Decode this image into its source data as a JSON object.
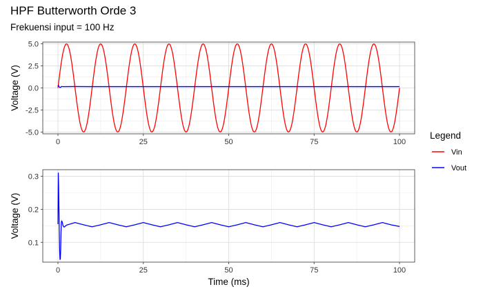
{
  "title": "HPF Butterworth Orde 3",
  "subtitle": "Frekuensi input = 100 Hz",
  "legend": {
    "title": "Legend",
    "placement": "right",
    "entries": [
      {
        "label": "Vin",
        "color": "#ff0000"
      },
      {
        "label": "Vout",
        "color": "#0000ff"
      }
    ]
  },
  "chart_data": [
    {
      "type": "line",
      "ylabel": "Voltage (V)",
      "xlabel": "",
      "xlim": [
        0,
        100
      ],
      "ylim": [
        -5.2,
        5.2
      ],
      "x_ticks": [
        0,
        25,
        50,
        75,
        100
      ],
      "y_ticks": [
        5.0,
        2.5,
        0.0,
        -2.5,
        -5.0
      ],
      "y_tick_labels": [
        "5.0",
        "2.5",
        "0.0",
        "-2.5",
        "-5.0"
      ],
      "grid": true,
      "series": [
        {
          "name": "Vin",
          "color": "#ff0000",
          "points": [
            [
              0,
              0
            ],
            [
              1.25,
              3.54
            ],
            [
              2.5,
              5
            ],
            [
              3.75,
              3.54
            ],
            [
              5,
              0
            ],
            [
              6.25,
              -3.54
            ],
            [
              7.5,
              -5
            ],
            [
              8.75,
              -3.54
            ],
            [
              10,
              0
            ],
            [
              11.25,
              3.54
            ],
            [
              12.5,
              5
            ],
            [
              13.75,
              3.54
            ],
            [
              15,
              0
            ],
            [
              16.25,
              -3.54
            ],
            [
              17.5,
              -5
            ],
            [
              18.75,
              -3.54
            ],
            [
              20,
              0
            ],
            [
              21.25,
              3.54
            ],
            [
              22.5,
              5
            ],
            [
              23.75,
              3.54
            ],
            [
              25,
              0
            ],
            [
              26.25,
              -3.54
            ],
            [
              27.5,
              -5
            ],
            [
              28.75,
              -3.54
            ],
            [
              30,
              0
            ],
            [
              31.25,
              3.54
            ],
            [
              32.5,
              5
            ],
            [
              33.75,
              3.54
            ],
            [
              35,
              0
            ],
            [
              36.25,
              -3.54
            ],
            [
              37.5,
              -5
            ],
            [
              38.75,
              -3.54
            ],
            [
              40,
              0
            ],
            [
              41.25,
              3.54
            ],
            [
              42.5,
              5
            ],
            [
              43.75,
              3.54
            ],
            [
              45,
              0
            ],
            [
              46.25,
              -3.54
            ],
            [
              47.5,
              -5
            ],
            [
              48.75,
              -3.54
            ],
            [
              50,
              0
            ],
            [
              51.25,
              3.54
            ],
            [
              52.5,
              5
            ],
            [
              53.75,
              3.54
            ],
            [
              55,
              0
            ],
            [
              56.25,
              -3.54
            ],
            [
              57.5,
              -5
            ],
            [
              58.75,
              -3.54
            ],
            [
              60,
              0
            ],
            [
              61.25,
              3.54
            ],
            [
              62.5,
              5
            ],
            [
              63.75,
              3.54
            ],
            [
              65,
              0
            ],
            [
              66.25,
              -3.54
            ],
            [
              67.5,
              -5
            ],
            [
              68.75,
              -3.54
            ],
            [
              70,
              0
            ],
            [
              71.25,
              3.54
            ],
            [
              72.5,
              5
            ],
            [
              73.75,
              3.54
            ],
            [
              75,
              0
            ],
            [
              76.25,
              -3.54
            ],
            [
              77.5,
              -5
            ],
            [
              78.75,
              -3.54
            ],
            [
              80,
              0
            ],
            [
              81.25,
              3.54
            ],
            [
              82.5,
              5
            ],
            [
              83.75,
              3.54
            ],
            [
              85,
              0
            ],
            [
              86.25,
              -3.54
            ],
            [
              87.5,
              -5
            ],
            [
              88.75,
              -3.54
            ],
            [
              90,
              0
            ],
            [
              91.25,
              3.54
            ],
            [
              92.5,
              5
            ],
            [
              93.75,
              3.54
            ],
            [
              95,
              0
            ],
            [
              96.25,
              -3.54
            ],
            [
              97.5,
              -5
            ],
            [
              98.75,
              -3.54
            ],
            [
              100,
              0
            ]
          ]
        },
        {
          "name": "Vout",
          "color": "#0000ff",
          "points": [
            [
              0,
              0.15
            ],
            [
              0.1,
              0.3
            ],
            [
              0.2,
              0.25
            ],
            [
              0.4,
              0.1
            ],
            [
              0.6,
              0.05
            ],
            [
              0.8,
              0.08
            ],
            [
              1,
              0.16
            ],
            [
              1.2,
              0.165
            ],
            [
              1.5,
              0.148
            ],
            [
              2,
              0.15
            ],
            [
              5,
              0.16
            ],
            [
              10,
              0.15
            ],
            [
              100,
              0.15
            ]
          ]
        }
      ]
    },
    {
      "type": "line",
      "ylabel": "Voltage (V)",
      "xlabel": "Time (ms)",
      "xlim": [
        0,
        100
      ],
      "ylim": [
        0.04,
        0.32
      ],
      "x_ticks": [
        0,
        25,
        50,
        75,
        100
      ],
      "y_ticks": [
        0.3,
        0.2,
        0.1
      ],
      "y_tick_labels": [
        "0.3",
        "0.2",
        "0.1"
      ],
      "grid": true,
      "series": [
        {
          "name": "Vout",
          "color": "#0000ff",
          "points": [
            [
              0,
              0.155
            ],
            [
              0.1,
              0.31
            ],
            [
              0.2,
              0.27
            ],
            [
              0.3,
              0.2
            ],
            [
              0.4,
              0.12
            ],
            [
              0.5,
              0.07
            ],
            [
              0.6,
              0.048
            ],
            [
              0.7,
              0.05
            ],
            [
              0.8,
              0.08
            ],
            [
              0.9,
              0.13
            ],
            [
              1,
              0.16
            ],
            [
              1.1,
              0.165
            ],
            [
              1.3,
              0.16
            ],
            [
              1.5,
              0.15
            ],
            [
              1.8,
              0.146
            ],
            [
              2.5,
              0.152
            ],
            [
              5,
              0.16
            ],
            [
              7.5,
              0.153
            ],
            [
              10,
              0.147
            ],
            [
              12.5,
              0.153
            ],
            [
              15,
              0.16
            ],
            [
              17.5,
              0.153
            ],
            [
              20,
              0.147
            ],
            [
              22.5,
              0.153
            ],
            [
              25,
              0.16
            ],
            [
              27.5,
              0.153
            ],
            [
              30,
              0.147
            ],
            [
              32.5,
              0.153
            ],
            [
              35,
              0.16
            ],
            [
              37.5,
              0.153
            ],
            [
              40,
              0.147
            ],
            [
              42.5,
              0.153
            ],
            [
              45,
              0.16
            ],
            [
              47.5,
              0.153
            ],
            [
              50,
              0.147
            ],
            [
              52.5,
              0.153
            ],
            [
              55,
              0.16
            ],
            [
              57.5,
              0.153
            ],
            [
              60,
              0.147
            ],
            [
              62.5,
              0.153
            ],
            [
              65,
              0.16
            ],
            [
              67.5,
              0.153
            ],
            [
              70,
              0.147
            ],
            [
              72.5,
              0.153
            ],
            [
              75,
              0.16
            ],
            [
              77.5,
              0.153
            ],
            [
              80,
              0.147
            ],
            [
              82.5,
              0.153
            ],
            [
              85,
              0.16
            ],
            [
              87.5,
              0.153
            ],
            [
              90,
              0.147
            ],
            [
              92.5,
              0.153
            ],
            [
              95,
              0.16
            ],
            [
              97.5,
              0.153
            ],
            [
              100,
              0.148
            ]
          ]
        }
      ]
    }
  ]
}
